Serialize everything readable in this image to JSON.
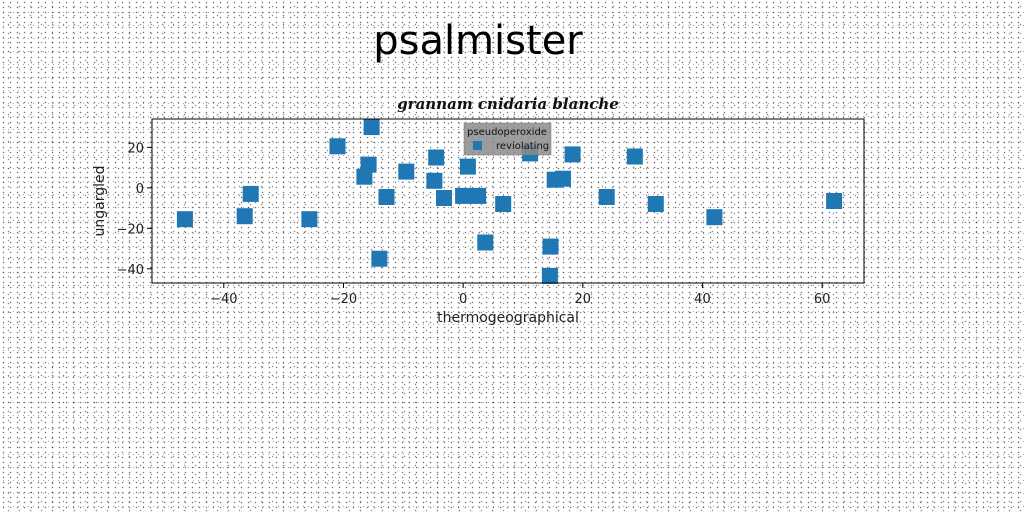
{
  "suptitle": "psalmister",
  "chart_data": {
    "type": "scatter",
    "title": "grannam cnidaria blanche",
    "xlabel": "thermogeographical",
    "ylabel": "ungargled",
    "xlim": [
      -52,
      67
    ],
    "ylim": [
      -47,
      34
    ],
    "xticks": [
      -40,
      -20,
      0,
      20,
      40,
      60
    ],
    "yticks": [
      -40,
      -20,
      0,
      20
    ],
    "grid": false,
    "legend": {
      "title": "pseudoperoxide",
      "placement": "top-center"
    },
    "series": [
      {
        "name": "reviolating",
        "color": "#1f77b4",
        "marker": "square",
        "points": [
          [
            -46.5,
            -15.5
          ],
          [
            -36.5,
            -14
          ],
          [
            -35.5,
            -3
          ],
          [
            -25.7,
            -15.5
          ],
          [
            -21,
            20.5
          ],
          [
            -15.3,
            30
          ],
          [
            -16.5,
            5.5
          ],
          [
            -15.8,
            11.5
          ],
          [
            -14,
            -35
          ],
          [
            -12.8,
            -4.5
          ],
          [
            -9.5,
            8
          ],
          [
            -4.8,
            3.5
          ],
          [
            -4.5,
            15
          ],
          [
            -3.2,
            -5
          ],
          [
            0,
            -4
          ],
          [
            0.8,
            10.5
          ],
          [
            2.5,
            -4
          ],
          [
            3.7,
            -27
          ],
          [
            6.7,
            -8
          ],
          [
            11.2,
            17
          ],
          [
            14.5,
            -43.5
          ],
          [
            14.6,
            -29
          ],
          [
            15.3,
            4
          ],
          [
            16.7,
            4.5
          ],
          [
            18.3,
            16.5
          ],
          [
            24,
            -4.5
          ],
          [
            28.7,
            15.5
          ],
          [
            32.2,
            -8
          ],
          [
            42,
            -14.5
          ],
          [
            62,
            -6.5
          ]
        ]
      }
    ]
  }
}
